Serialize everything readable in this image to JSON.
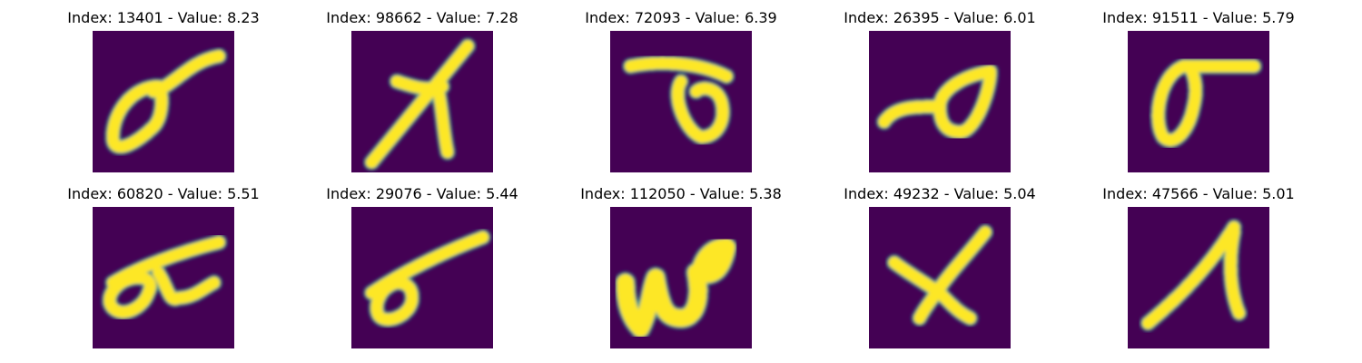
{
  "colors": {
    "background": "#440154",
    "mid": "#21918c",
    "stroke": "#fde725"
  },
  "panels": [
    {
      "title": "Index: 13401 - Value: 8.23",
      "glyph": "loop-tail"
    },
    {
      "title": "Index: 98662 - Value: 7.28",
      "glyph": "cross-slant"
    },
    {
      "title": "Index: 72093 - Value: 6.39",
      "glyph": "bar-loop"
    },
    {
      "title": "Index: 26395 - Value: 6.01",
      "glyph": "hook-loop"
    },
    {
      "title": "Index: 91511 - Value: 5.79",
      "glyph": "sigma"
    },
    {
      "title": "Index: 60820 - Value: 5.51",
      "glyph": "double-loop"
    },
    {
      "title": "Index: 29076 - Value: 5.44",
      "glyph": "loop-long-tail"
    },
    {
      "title": "Index: 112050 - Value: 5.38",
      "glyph": "zigzag"
    },
    {
      "title": "Index: 49232 - Value: 5.04",
      "glyph": "x-cross"
    },
    {
      "title": "Index: 47566 - Value: 5.01",
      "glyph": "lambda"
    }
  ]
}
